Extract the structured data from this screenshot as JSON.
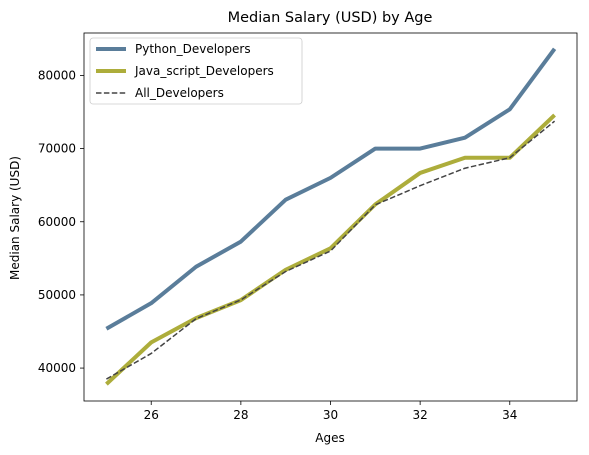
{
  "chart_data": {
    "type": "line",
    "title": "Median Salary (USD) by Age",
    "xlabel": "Ages",
    "ylabel": "Median Salary (USD)",
    "xlim": [
      24.5,
      35.5
    ],
    "ylim": [
      35500,
      85800
    ],
    "x": [
      25,
      26,
      27,
      28,
      29,
      30,
      31,
      32,
      33,
      34,
      35
    ],
    "xticks": [
      26,
      28,
      30,
      32,
      34
    ],
    "yticks": [
      40000,
      50000,
      60000,
      70000,
      80000
    ],
    "grid": false,
    "legend_position": "top-left",
    "series": [
      {
        "name": "Python_Developers",
        "values": [
          45372,
          48876,
          53850,
          57287,
          63016,
          65998,
          70003,
          70000,
          71496,
          75370,
          83640
        ],
        "color": "#5a7d9a",
        "style": "solid"
      },
      {
        "name": "Java_script_Developers",
        "values": [
          37810,
          43515,
          46823,
          49293,
          53437,
          56373,
          62375,
          66674,
          68745,
          68746,
          74583
        ],
        "color": "#adad3b",
        "style": "solid"
      },
      {
        "name": "All_Developers",
        "values": [
          38496,
          42000,
          46752,
          49320,
          53200,
          56000,
          62316,
          64928,
          67317,
          68748,
          73752
        ],
        "color": "#444444",
        "style": "dashed"
      }
    ]
  }
}
